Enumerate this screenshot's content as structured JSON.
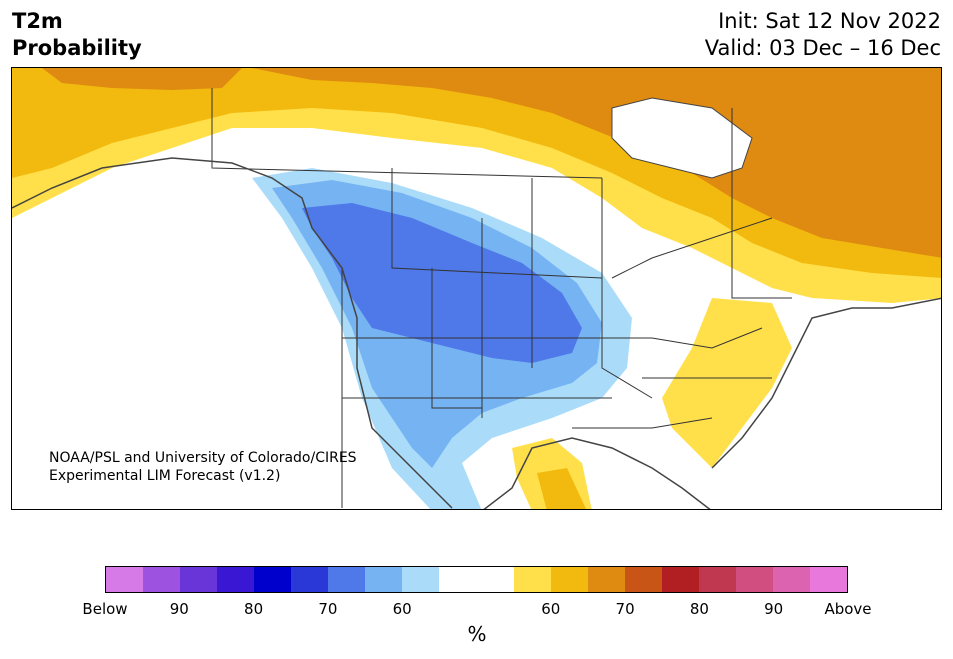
{
  "header": {
    "variable": "T2m",
    "subtitle": "Probability",
    "init": "Init: Sat 12 Nov 2022",
    "valid": "Valid: 03 Dec – 16 Dec"
  },
  "map": {
    "region": "North America",
    "credit_line1": "NOAA/PSL and University of Colorado/CIRES",
    "credit_line2": "Experimental LIM Forecast (v1.2)",
    "colors": {
      "land_neutral": "#ffffff",
      "below_60": "#aadcfa",
      "below_70": "#76b3f2",
      "below_80": "#4f78e8",
      "above_60": "#ffe04a",
      "above_70": "#f2b90e",
      "above_80": "#df8a10",
      "borders": "#333333"
    }
  },
  "colorbar": {
    "unit": "%",
    "colors": [
      "#d67ae8",
      "#9d53e0",
      "#6a35d8",
      "#3a18d3",
      "#0000cc",
      "#2a38d8",
      "#4f78e8",
      "#76b3f2",
      "#aadcfa",
      "#ffffff",
      "#ffffff",
      "#ffe04a",
      "#f2b90e",
      "#df8a10",
      "#c85416",
      "#b21f22",
      "#c0384f",
      "#d04f80",
      "#dc63b0",
      "#e878dc"
    ],
    "tick_labels": [
      "Below",
      "90",
      "80",
      "70",
      "60",
      "60",
      "70",
      "80",
      "90",
      "Above"
    ]
  }
}
